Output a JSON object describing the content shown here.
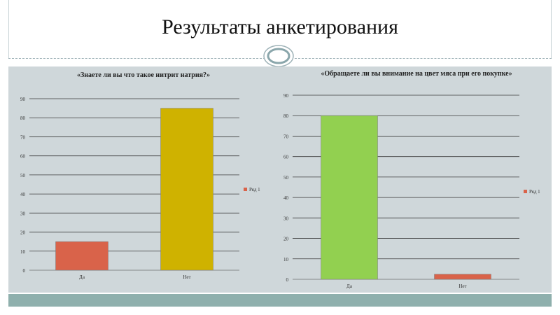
{
  "slide": {
    "title": "Результаты анкетирования"
  },
  "chart_data": [
    {
      "type": "bar",
      "title": "«Знаете ли вы что такое нитрит натрия?»",
      "categories": [
        "Да",
        "Нет"
      ],
      "series": [
        {
          "name": "Ряд 1",
          "values": [
            15,
            85
          ]
        }
      ],
      "bar_colors": [
        "#d9634a",
        "#cfb200"
      ],
      "ylim": [
        0,
        90
      ],
      "yticks": [
        0,
        10,
        20,
        30,
        40,
        50,
        60,
        70,
        80,
        90
      ],
      "grid": true,
      "legend_position": "right"
    },
    {
      "type": "bar",
      "title": "«Обращаете ли вы внимание на цвет мяса при его покупке»",
      "categories": [
        "Да",
        "Нет"
      ],
      "series": [
        {
          "name": "Ряд 1",
          "values": [
            80,
            2.5
          ]
        }
      ],
      "bar_colors": [
        "#92d050",
        "#d9634a"
      ],
      "ylim": [
        0,
        90
      ],
      "yticks": [
        0,
        10,
        20,
        30,
        40,
        50,
        60,
        70,
        80,
        90
      ],
      "grid": true,
      "legend_position": "right"
    }
  ]
}
